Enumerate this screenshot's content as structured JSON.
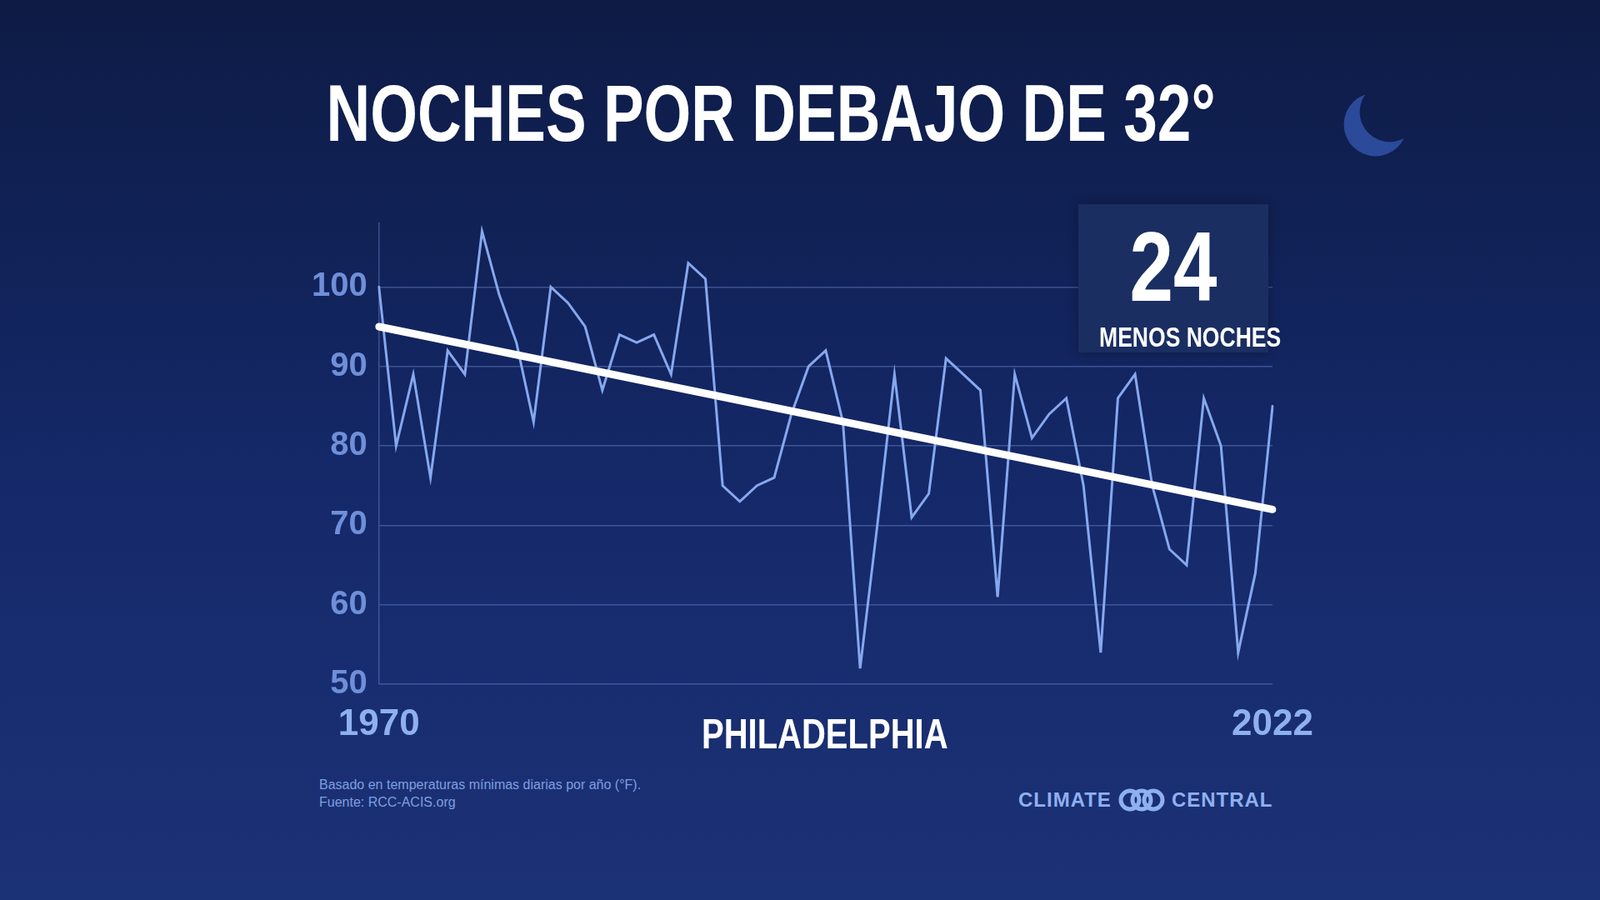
{
  "chart_data": {
    "type": "line",
    "title": "NOCHES POR DEBAJO DE 32°",
    "x_label": "PHILADELPHIA",
    "categories": [
      "1970",
      null,
      null,
      null,
      null,
      null,
      null,
      null,
      null,
      null,
      null,
      null,
      null,
      null,
      null,
      null,
      null,
      null,
      null,
      null,
      null,
      null,
      null,
      null,
      null,
      null,
      null,
      null,
      null,
      null,
      null,
      null,
      null,
      null,
      null,
      null,
      null,
      null,
      null,
      null,
      null,
      null,
      null,
      null,
      null,
      null,
      null,
      null,
      null,
      null,
      null,
      null,
      "2022"
    ],
    "series": [
      {
        "color": "#86a8ee",
        "line_style": "solid",
        "values": [
          100,
          80,
          89,
          76,
          92,
          89,
          107,
          99,
          93,
          83,
          100,
          98,
          95,
          87,
          94,
          93,
          94,
          89,
          103,
          101,
          75,
          73,
          75,
          76,
          84,
          90,
          92,
          83,
          52,
          70,
          89,
          71,
          74,
          91,
          89,
          87,
          61,
          89,
          81,
          84,
          86,
          75,
          54,
          86,
          89,
          75,
          67,
          65,
          86,
          80,
          54,
          64,
          85
        ]
      },
      {
        "color": "#ffffff",
        "line_style": "solid",
        "values": [
          95,
          null,
          null,
          null,
          null,
          null,
          null,
          null,
          null,
          null,
          null,
          null,
          null,
          null,
          null,
          null,
          null,
          null,
          null,
          null,
          null,
          null,
          null,
          null,
          null,
          null,
          null,
          null,
          null,
          null,
          null,
          null,
          null,
          null,
          null,
          null,
          null,
          null,
          null,
          null,
          null,
          null,
          null,
          null,
          null,
          null,
          null,
          null,
          null,
          null,
          null,
          null,
          72
        ]
      }
    ],
    "annotation": {
      "value": 24,
      "label": "MENOS NOCHES"
    },
    "notes": [
      "Basado en temperaturas mínimas diarias por año (°F).",
      "Fuente: RCC-ACIS.org"
    ],
    "logo": [
      "CLIMATE",
      "CENTRAL"
    ],
    "ylim": [
      50,
      108
    ],
    "yticks": [
      50,
      60,
      70,
      80,
      90,
      100
    ],
    "grid": true
  }
}
